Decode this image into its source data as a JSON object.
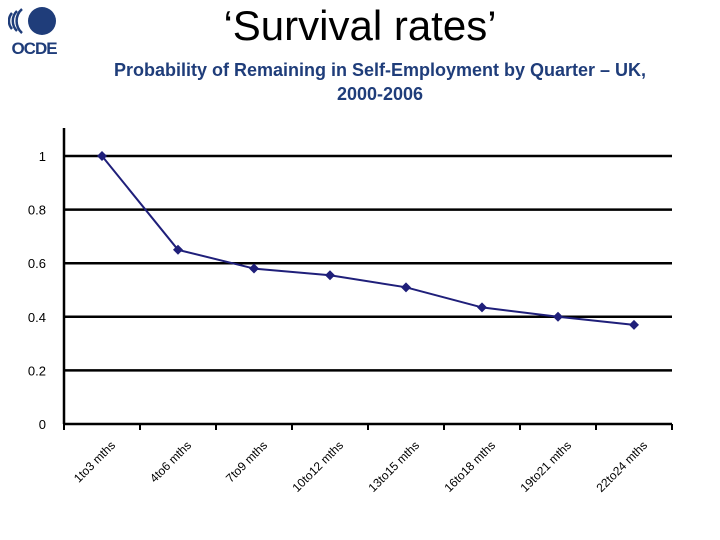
{
  "header": {
    "logo_text": "OCDE",
    "title": "‘Survival rates’",
    "subtitle_line1": "Probability of Remaining in Self-Employment by Quarter – UK,",
    "subtitle_line2": "2000-2006"
  },
  "colors": {
    "line": "#1f1f7a",
    "marker": "#1f1f7a",
    "grid": "#000000",
    "subtitle": "#1f3d7a",
    "logo": "#1f3d7a"
  },
  "icons": {
    "logo": "oecd-logo"
  },
  "chart_data": {
    "type": "line",
    "title": "",
    "xlabel": "",
    "ylabel": "",
    "categories": [
      "1to3 mths",
      "4to6 mths",
      "7to9 mths",
      "10to12 mths",
      "13to15 mths",
      "16to18 mths",
      "19to21 mths",
      "22to24 mths"
    ],
    "series": [
      {
        "values": [
          1.0,
          0.65,
          0.58,
          0.555,
          0.51,
          0.435,
          0.4,
          0.37
        ]
      }
    ],
    "ylim": [
      0,
      1
    ],
    "yticks": [
      0,
      0.2,
      0.4,
      0.6,
      0.8,
      1
    ],
    "ytick_labels": [
      "0",
      "0.2",
      "0.4",
      "0.6",
      "0.8",
      "1"
    ],
    "grid": true,
    "legend": "none"
  }
}
